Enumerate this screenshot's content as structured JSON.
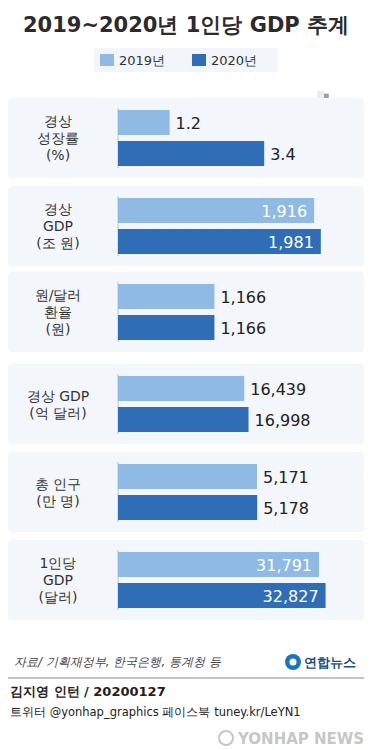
{
  "header": {
    "title": "2019~2020년 1인당 GDP 추계"
  },
  "legend_entries": [
    {
      "name": "2019년",
      "color": "#8ebae4"
    },
    {
      "name": "2020년",
      "color": "#2f6db6"
    }
  ],
  "chart_data": [
    {
      "type": "bar",
      "orientation": "horizontal",
      "title": "경상\n성장률\n(%)",
      "categories": [
        null,
        null
      ],
      "values": [
        1.2,
        3.4
      ],
      "colors": [
        "#8ebae4",
        "#2f6db6"
      ],
      "xlim": [
        0,
        5
      ],
      "data_labels": true,
      "tick_labels": false
    },
    {
      "type": "bar",
      "orientation": "horizontal",
      "title": "경상\nGDP\n(조 원)",
      "categories": [
        null,
        null
      ],
      "values": [
        1916,
        1981
      ],
      "value_labels": [
        "1,916",
        "1,981"
      ],
      "colors": [
        "#8ebae4",
        "#2f6db6"
      ],
      "xlim": [
        0,
        2100
      ],
      "data_labels": true,
      "tick_labels": false
    },
    {
      "type": "bar",
      "orientation": "horizontal",
      "title": "원/달러\n환율\n(원)",
      "categories": [
        null,
        null
      ],
      "values": [
        1166,
        1166
      ],
      "value_labels": [
        "1,166",
        "1,166"
      ],
      "colors": [
        "#8ebae4",
        "#2f6db6"
      ],
      "xlim": [
        0,
        2600
      ],
      "data_labels": true,
      "tick_labels": false
    },
    {
      "type": "bar",
      "orientation": "horizontal",
      "title": "경상 GDP\n(억 달러)",
      "categories": [
        null,
        null
      ],
      "values": [
        16439,
        16998
      ],
      "value_labels": [
        "16,439",
        "16,998"
      ],
      "colors": [
        "#8ebae4",
        "#2f6db6"
      ],
      "xlim": [
        0,
        28000
      ],
      "data_labels": true,
      "tick_labels": false
    },
    {
      "type": "bar",
      "orientation": "horizontal",
      "title": "총 인구\n(만 명)",
      "categories": [
        null,
        null
      ],
      "values": [
        5171,
        5178
      ],
      "value_labels": [
        "5,171",
        "5,178"
      ],
      "colors": [
        "#8ebae4",
        "#2f6db6"
      ],
      "xlim": [
        0,
        8000
      ],
      "data_labels": true,
      "tick_labels": false
    },
    {
      "type": "bar",
      "orientation": "horizontal",
      "title": "1인당\nGDP\n(달러)",
      "categories": [
        null,
        null
      ],
      "values": [
        31791,
        32827
      ],
      "value_labels": [
        "31,791",
        "32,827"
      ],
      "colors": [
        "#8ebae4",
        "#2f6db6"
      ],
      "xlim": [
        0,
        34000
      ],
      "data_labels": true,
      "tick_labels": false
    }
  ],
  "footer": {
    "source": "자료/ 기획재정부, 한국은행, 통계청 등",
    "logo": "연합뉴스",
    "credit": "김지영 인턴 / 20200127",
    "social": "트위터 @yonhap_graphics  페이스북 tuney.kr/LeYN1",
    "watermark": "YONHAP NEWS"
  }
}
